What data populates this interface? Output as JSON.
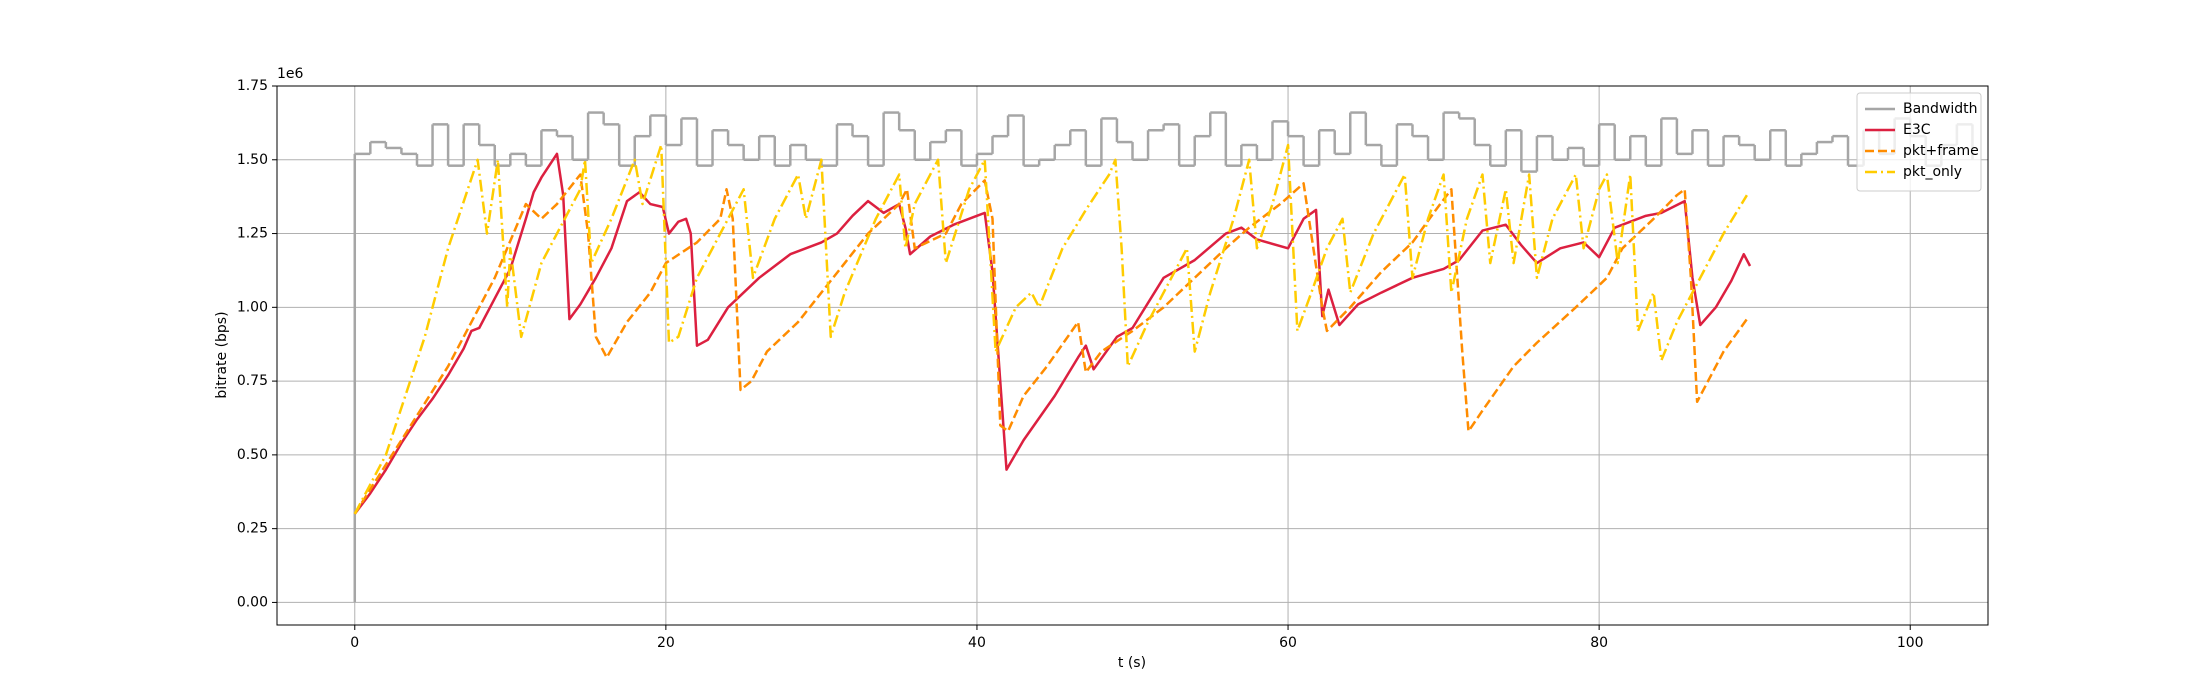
{
  "chart_data": {
    "type": "line",
    "xlabel": "t (s)",
    "ylabel": "bitrate (bps)",
    "y_offset_label": "1e6",
    "xlim": [
      -5,
      105
    ],
    "ylim": [
      -76500,
      1750000
    ],
    "xticks": [
      0,
      20,
      40,
      60,
      80,
      100
    ],
    "yticks": [
      {
        "value": 0,
        "label": "0.00"
      },
      {
        "value": 250000,
        "label": "0.25"
      },
      {
        "value": 500000,
        "label": "0.50"
      },
      {
        "value": 750000,
        "label": "0.75"
      },
      {
        "value": 1000000,
        "label": "1.00"
      },
      {
        "value": 1250000,
        "label": "1.25"
      },
      {
        "value": 1500000,
        "label": "1.50"
      },
      {
        "value": 1750000,
        "label": "1.75"
      }
    ],
    "grid": true,
    "legend": "upper right",
    "series": [
      {
        "name": "Bandwidth",
        "color": "#a6a6a6",
        "linestyle": "solid",
        "drawstyle": "steps-post",
        "x": [
          0,
          0,
          1,
          2,
          3,
          4,
          5,
          6,
          7,
          8,
          9,
          10,
          11,
          12,
          13,
          14,
          15,
          16,
          17,
          18,
          19,
          20,
          21,
          22,
          23,
          24,
          25,
          26,
          27,
          28,
          29,
          30,
          31,
          32,
          33,
          34,
          35,
          36,
          37,
          38,
          39,
          40,
          41,
          42,
          43,
          44,
          45,
          46,
          47,
          48,
          49,
          50,
          51,
          52,
          53,
          54,
          55,
          56,
          57,
          58,
          59,
          60,
          61,
          62,
          63,
          64,
          65,
          66,
          67,
          68,
          69,
          70,
          71,
          72,
          73,
          74,
          75,
          76,
          77,
          78,
          79,
          80,
          81,
          82,
          83,
          84,
          85,
          86,
          87,
          88,
          89,
          90,
          91,
          92,
          93,
          94,
          95,
          96,
          97,
          98,
          99,
          100,
          101,
          102,
          103,
          104
        ],
        "values": [
          0,
          1520000,
          1560000,
          1540000,
          1520000,
          1480000,
          1620000,
          1480000,
          1620000,
          1550000,
          1480000,
          1520000,
          1480000,
          1600000,
          1580000,
          1500000,
          1660000,
          1620000,
          1480000,
          1580000,
          1650000,
          1550000,
          1640000,
          1480000,
          1600000,
          1550000,
          1500000,
          1580000,
          1480000,
          1550000,
          1500000,
          1480000,
          1620000,
          1580000,
          1480000,
          1660000,
          1600000,
          1500000,
          1560000,
          1600000,
          1480000,
          1520000,
          1580000,
          1650000,
          1480000,
          1500000,
          1550000,
          1600000,
          1480000,
          1640000,
          1560000,
          1500000,
          1600000,
          1620000,
          1480000,
          1580000,
          1660000,
          1480000,
          1550000,
          1500000,
          1630000,
          1580000,
          1480000,
          1600000,
          1520000,
          1660000,
          1550000,
          1480000,
          1620000,
          1580000,
          1500000,
          1660000,
          1640000,
          1550000,
          1480000,
          1600000,
          1460000,
          1580000,
          1500000,
          1540000,
          1480000,
          1620000,
          1500000,
          1580000,
          1480000,
          1640000,
          1520000,
          1600000,
          1480000,
          1580000,
          1550000,
          1500000,
          1600000,
          1480000,
          1520000,
          1560000,
          1580000,
          1480000,
          1600000,
          1520000,
          1640000,
          1580000,
          1480000,
          1550000,
          1620000,
          1500000
        ]
      },
      {
        "name": "E3C",
        "color": "#dc2040",
        "linestyle": "solid",
        "x": [
          0,
          1,
          2,
          3,
          4,
          5,
          6,
          7,
          7.5,
          8,
          9,
          10,
          11,
          11.5,
          12,
          13,
          13.4,
          13.8,
          14.5,
          15.5,
          16.5,
          17.5,
          18.3,
          19,
          19.8,
          20.2,
          20.8,
          21.3,
          21.6,
          22,
          22.7,
          24,
          26,
          28,
          30,
          31,
          32,
          33,
          34,
          35,
          35.4,
          35.7,
          37,
          38.5,
          40,
          40.5,
          41,
          41.9,
          43,
          45,
          46.5,
          47,
          47.5,
          49,
          50,
          52,
          54,
          56,
          57,
          58,
          60,
          61,
          61.8,
          62.2,
          62.6,
          63.3,
          64.5,
          66,
          68,
          70,
          71,
          72.5,
          74,
          75,
          76,
          77.5,
          79,
          80,
          81,
          83,
          84,
          85.5,
          86,
          86.5,
          87.5,
          88.5,
          89.3,
          89.7
        ],
        "values": [
          300000,
          370000,
          450000,
          540000,
          620000,
          690000,
          770000,
          860000,
          920000,
          930000,
          1030000,
          1130000,
          1300000,
          1390000,
          1440000,
          1520000,
          1380000,
          960000,
          1010000,
          1100000,
          1200000,
          1360000,
          1390000,
          1350000,
          1340000,
          1250000,
          1290000,
          1300000,
          1250000,
          870000,
          890000,
          1000000,
          1100000,
          1180000,
          1220000,
          1250000,
          1310000,
          1360000,
          1320000,
          1350000,
          1270000,
          1180000,
          1240000,
          1280000,
          1310000,
          1320000,
          1120000,
          450000,
          550000,
          700000,
          830000,
          870000,
          790000,
          900000,
          930000,
          1100000,
          1160000,
          1250000,
          1270000,
          1230000,
          1200000,
          1300000,
          1330000,
          970000,
          1060000,
          940000,
          1010000,
          1050000,
          1100000,
          1130000,
          1160000,
          1260000,
          1280000,
          1210000,
          1150000,
          1200000,
          1220000,
          1170000,
          1270000,
          1310000,
          1320000,
          1360000,
          1100000,
          940000,
          1000000,
          1090000,
          1180000,
          1140000
        ]
      },
      {
        "name": "pkt+frame",
        "color": "#ff8c00",
        "linestyle": "dashed",
        "x": [
          0,
          3,
          6,
          9,
          11,
          12,
          13,
          14.5,
          15,
          15.5,
          16.2,
          17.5,
          19,
          20,
          22,
          23.5,
          23.9,
          24.3,
          24.8,
          25.5,
          26.5,
          28.5,
          30,
          31.5,
          33,
          35,
          35.5,
          36,
          38,
          39,
          40.5,
          41,
          41.5,
          42,
          43,
          44.5,
          46.5,
          47,
          48,
          50,
          52,
          54,
          56,
          57.5,
          59.5,
          61,
          62.2,
          62.5,
          64,
          66,
          68,
          69.5,
          70.5,
          71.2,
          71.6,
          72.5,
          74.5,
          76,
          78.5,
          80.5,
          81.5,
          83.5,
          85,
          85.5,
          85.9,
          86.3,
          87,
          88,
          89.5
        ],
        "values": [
          300000,
          550000,
          800000,
          1100000,
          1350000,
          1300000,
          1350000,
          1450000,
          1250000,
          900000,
          830000,
          950000,
          1050000,
          1150000,
          1220000,
          1300000,
          1400000,
          1300000,
          720000,
          750000,
          850000,
          950000,
          1050000,
          1150000,
          1250000,
          1350000,
          1400000,
          1200000,
          1250000,
          1350000,
          1430000,
          1300000,
          600000,
          580000,
          700000,
          800000,
          950000,
          780000,
          850000,
          920000,
          1000000,
          1100000,
          1200000,
          1270000,
          1350000,
          1420000,
          1000000,
          920000,
          1000000,
          1120000,
          1220000,
          1330000,
          1400000,
          850000,
          580000,
          650000,
          800000,
          880000,
          1000000,
          1100000,
          1200000,
          1300000,
          1380000,
          1400000,
          1100000,
          680000,
          750000,
          850000,
          960000
        ]
      },
      {
        "name": "pkt_only",
        "color": "#ffcc00",
        "linestyle": "dashdot",
        "x": [
          0,
          2,
          4.5,
          6,
          7.9,
          8.5,
          9.2,
          9.8,
          10,
          10.7,
          12,
          14.5,
          14.8,
          15.2,
          16.5,
          18,
          18.5,
          19.7,
          20.2,
          20.8,
          22,
          24,
          25,
          25.6,
          27,
          28.5,
          29,
          30,
          30.6,
          31.5,
          33.5,
          35,
          35.4,
          36,
          37.5,
          38,
          39.5,
          40.5,
          41.2,
          42.5,
          43.5,
          44,
          45.5,
          47,
          48.5,
          48.9,
          49.3,
          49.7,
          51,
          52.5,
          53.5,
          54,
          55,
          56.5,
          57.5,
          58,
          59,
          60,
          60.6,
          61.5,
          62.5,
          63.5,
          64,
          65.5,
          67,
          67.5,
          68,
          69,
          70,
          70.5,
          71.5,
          72.5,
          73,
          74,
          74.5,
          75.5,
          76,
          77,
          78.5,
          79,
          80,
          80.5,
          81.2,
          82,
          82.5,
          83.5,
          84,
          85,
          86.5,
          88,
          89.5
        ],
        "values": [
          300000,
          500000,
          900000,
          1200000,
          1500000,
          1250000,
          1500000,
          1000000,
          1200000,
          900000,
          1150000,
          1400000,
          1500000,
          1150000,
          1300000,
          1500000,
          1350000,
          1550000,
          880000,
          900000,
          1100000,
          1300000,
          1400000,
          1100000,
          1300000,
          1450000,
          1300000,
          1500000,
          900000,
          1050000,
          1300000,
          1450000,
          1200000,
          1350000,
          1500000,
          1150000,
          1400000,
          1500000,
          850000,
          1000000,
          1050000,
          1000000,
          1200000,
          1330000,
          1450000,
          1500000,
          1200000,
          800000,
          950000,
          1100000,
          1200000,
          850000,
          1050000,
          1300000,
          1500000,
          1200000,
          1350000,
          1550000,
          920000,
          1050000,
          1200000,
          1300000,
          1050000,
          1250000,
          1400000,
          1450000,
          1100000,
          1300000,
          1450000,
          1050000,
          1300000,
          1450000,
          1150000,
          1400000,
          1150000,
          1450000,
          1100000,
          1300000,
          1450000,
          1200000,
          1400000,
          1450000,
          1150000,
          1450000,
          920000,
          1050000,
          820000,
          950000,
          1100000,
          1250000,
          1380000
        ]
      }
    ]
  }
}
